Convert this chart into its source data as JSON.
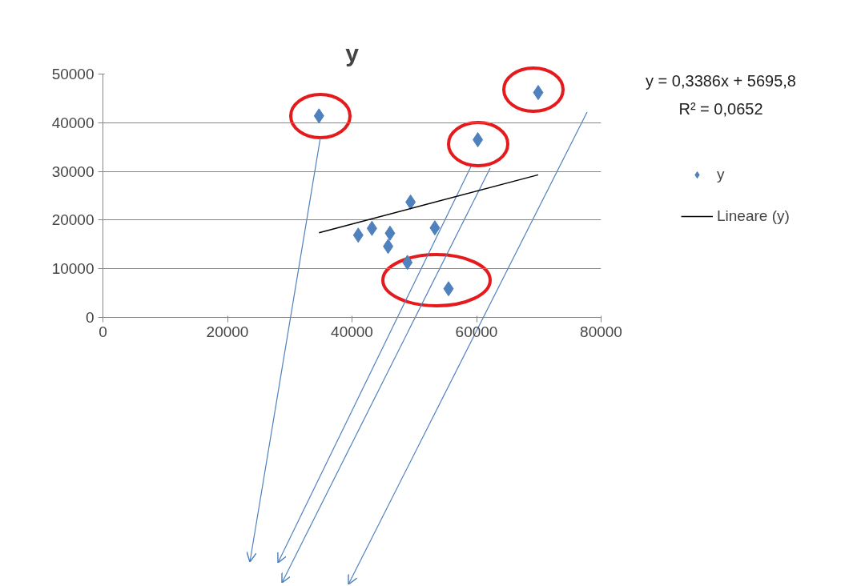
{
  "chart_data": {
    "type": "scatter",
    "title": "y",
    "series": [
      {
        "name": "y",
        "color": "#4f81bd",
        "marker": "diamond",
        "x": [
          34700,
          41000,
          43200,
          46100,
          45800,
          49400,
          53300,
          48900,
          55500,
          60200,
          69900
        ],
        "values": [
          41400,
          16900,
          18300,
          17300,
          14600,
          23700,
          18400,
          11300,
          5900,
          36500,
          46200
        ]
      },
      {
        "name": "Lineare (y)",
        "type": "line",
        "color": "#000000",
        "marker": "none",
        "x": [
          34700,
          69900
        ],
        "values": [
          17400,
          29300
        ]
      }
    ],
    "xlim": [
      0,
      80000
    ],
    "xticks": [
      0,
      20000,
      40000,
      60000,
      80000
    ],
    "ylim": [
      0,
      50000
    ],
    "yticks": [
      0,
      10000,
      20000,
      30000,
      40000,
      50000
    ],
    "grid": "y",
    "legend": "right",
    "annotations": [
      "y = 0,3386x + 5695,8",
      "R² = 0,0652"
    ]
  }
}
